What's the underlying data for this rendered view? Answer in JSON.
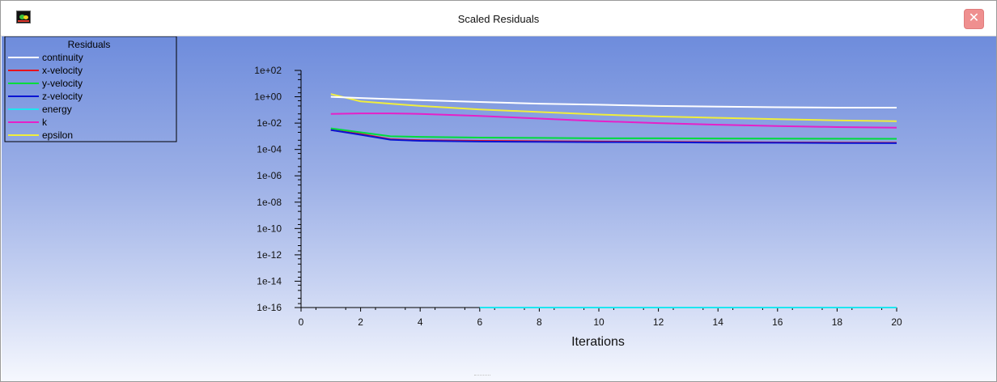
{
  "window": {
    "title": "Scaled Residuals",
    "close_label": "✕"
  },
  "legend": {
    "title": "Residuals",
    "entries": [
      {
        "name": "continuity",
        "color": "#ffffff"
      },
      {
        "name": "x-velocity",
        "color": "#e8121c"
      },
      {
        "name": "y-velocity",
        "color": "#00dc3c"
      },
      {
        "name": "z-velocity",
        "color": "#0a14d2"
      },
      {
        "name": "energy",
        "color": "#1ee6f0"
      },
      {
        "name": "k",
        "color": "#e620c8"
      },
      {
        "name": "epsilon",
        "color": "#f0ee3c"
      }
    ]
  },
  "chart_data": {
    "type": "line",
    "xlabel": "Iterations",
    "ylabel": "",
    "x_ticks": [
      0,
      2,
      4,
      6,
      8,
      10,
      12,
      14,
      16,
      18,
      20
    ],
    "y_tick_labels": [
      "1e+02",
      "1e+00",
      "1e-02",
      "1e-04",
      "1e-06",
      "1e-08",
      "1e-10",
      "1e-12",
      "1e-14",
      "1e-16"
    ],
    "y_scale": "log",
    "xlim": [
      0,
      20
    ],
    "ylim": [
      1e-16,
      100
    ],
    "series": [
      {
        "name": "continuity",
        "color": "#ffffff",
        "x": [
          1,
          2,
          4,
          6,
          8,
          10,
          12,
          14,
          16,
          18,
          20
        ],
        "y": [
          1.0,
          0.8,
          0.55,
          0.4,
          0.3,
          0.25,
          0.2,
          0.18,
          0.16,
          0.15,
          0.15
        ]
      },
      {
        "name": "x-velocity",
        "color": "#e8121c",
        "x": [
          1,
          2,
          3,
          4,
          6,
          8,
          10,
          12,
          14,
          16,
          18,
          20
        ],
        "y": [
          0.003,
          0.0015,
          0.0006,
          0.0005,
          0.00045,
          0.00042,
          0.0004,
          0.00038,
          0.00036,
          0.00034,
          0.00033,
          0.00032
        ]
      },
      {
        "name": "y-velocity",
        "color": "#00dc3c",
        "x": [
          1,
          2,
          3,
          4,
          6,
          8,
          10,
          12,
          14,
          16,
          18,
          20
        ],
        "y": [
          0.004,
          0.002,
          0.001,
          0.0009,
          0.0008,
          0.00075,
          0.0007,
          0.0007,
          0.00068,
          0.00066,
          0.00065,
          0.00064
        ]
      },
      {
        "name": "z-velocity",
        "color": "#0a14d2",
        "x": [
          1,
          2,
          3,
          4,
          6,
          8,
          10,
          12,
          14,
          16,
          18,
          20
        ],
        "y": [
          0.003,
          0.0013,
          0.00055,
          0.00045,
          0.0004,
          0.00038,
          0.00036,
          0.00035,
          0.00033,
          0.00032,
          0.00031,
          0.0003
        ]
      },
      {
        "name": "energy",
        "color": "#1ee6f0",
        "x": [
          6,
          20
        ],
        "y": [
          1e-16,
          1e-16
        ]
      },
      {
        "name": "k",
        "color": "#e620c8",
        "x": [
          1,
          2,
          3,
          4,
          6,
          8,
          10,
          12,
          14,
          16,
          18,
          20
        ],
        "y": [
          0.05,
          0.055,
          0.055,
          0.05,
          0.035,
          0.022,
          0.014,
          0.01,
          0.0075,
          0.006,
          0.005,
          0.0045
        ]
      },
      {
        "name": "epsilon",
        "color": "#f0ee3c",
        "x": [
          1,
          2,
          3,
          4,
          6,
          8,
          10,
          12,
          14,
          16,
          18,
          20
        ],
        "y": [
          1.6,
          0.45,
          0.3,
          0.2,
          0.11,
          0.07,
          0.045,
          0.032,
          0.025,
          0.02,
          0.016,
          0.014
        ]
      }
    ]
  }
}
